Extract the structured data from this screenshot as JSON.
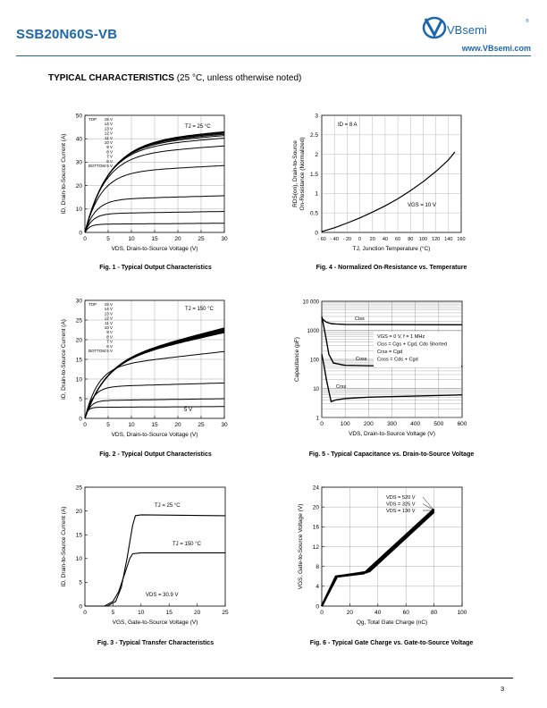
{
  "header": {
    "part_number": "SSB20N60S-VB",
    "brand": "VBsemi",
    "url": "www.VBsemi.com"
  },
  "section": {
    "title": "TYPICAL CHARACTERISTICS",
    "condition": "(25 °C, unless otherwise noted)"
  },
  "figures": [
    {
      "id": 1,
      "caption": "Fig. 1 - Typical Output Characteristics"
    },
    {
      "id": 2,
      "caption": "Fig. 2 - Typical Output Characteristics"
    },
    {
      "id": 3,
      "caption": "Fig. 3 - Typical Transfer Characteristics"
    },
    {
      "id": 4,
      "caption": "Fig. 4 - Normalized On-Resistance vs. Temperature"
    },
    {
      "id": 5,
      "caption": "Fig. 5 - Typical Capacitance vs. Drain-to-Source Voltage"
    },
    {
      "id": 6,
      "caption": "Fig. 6 - Typical Gate Charge vs. Gate-to-Source Voltage"
    }
  ],
  "page_number": "3",
  "chart_data": [
    {
      "id": "fig1",
      "type": "line",
      "xlabel": "VDS, Drain-to-Source Voltage (V)",
      "ylabel": "ID, Drain-to-Source Current (A)",
      "xlim": [
        0,
        30
      ],
      "ylim": [
        0,
        50
      ],
      "xticks": [
        0,
        5,
        10,
        15,
        20,
        25,
        30
      ],
      "yticks": [
        0,
        10,
        20,
        30,
        40,
        50
      ],
      "annotation": "TJ = 25 °C",
      "legend_top": "TOP",
      "legend_bottom": "BOTTOM",
      "legend_vgs": [
        "15 V",
        "14 V",
        "13 V",
        "12 V",
        "11 V",
        "10 V",
        "9 V",
        "8 V",
        "7 V",
        "6 V",
        "5 V"
      ],
      "series": [
        {
          "sat": 38.5,
          "knee": 5.2
        },
        {
          "sat": 38.2,
          "knee": 5.1
        },
        {
          "sat": 37.9,
          "knee": 5.0
        },
        {
          "sat": 37.5,
          "knee": 4.9
        },
        {
          "sat": 37.0,
          "knee": 4.8
        },
        {
          "sat": 36.0,
          "knee": 4.6
        },
        {
          "sat": 33.0,
          "knee": 4.2
        },
        {
          "sat": 25.5,
          "knee": 3.4
        },
        {
          "sat": 14.0,
          "knee": 2.3
        },
        {
          "sat": 8.0,
          "knee": 1.6
        },
        {
          "sat": 3.5,
          "knee": 1.0
        }
      ]
    },
    {
      "id": "fig2",
      "type": "line",
      "xlabel": "VDS, Drain-to-Source Voltage (V)",
      "ylabel": "ID, Drain-to-Source Current (A)",
      "xlim": [
        0,
        30
      ],
      "ylim": [
        0,
        30
      ],
      "xticks": [
        0,
        5,
        10,
        15,
        20,
        25,
        30
      ],
      "yticks": [
        0,
        5,
        10,
        15,
        20,
        25,
        30
      ],
      "annotation": "TJ = 150 °C",
      "label_5v": "5 V",
      "legend_top": "TOP",
      "legend_bottom": "BOTTOM",
      "legend_vgs": [
        "15 V",
        "14 V",
        "13 V",
        "12 V",
        "11 V",
        "10 V",
        "9 V",
        "8 V",
        "7 V",
        "6 V",
        "5 V"
      ],
      "series": [
        {
          "end": 23.0,
          "kneeV": 8,
          "kneeI": 14
        },
        {
          "end": 22.8,
          "kneeV": 8,
          "kneeI": 14
        },
        {
          "end": 22.6,
          "kneeV": 8,
          "kneeI": 14
        },
        {
          "end": 22.4,
          "kneeV": 8,
          "kneeI": 14
        },
        {
          "end": 22.2,
          "kneeV": 8,
          "kneeI": 14
        },
        {
          "end": 22.0,
          "kneeV": 8,
          "kneeI": 14
        },
        {
          "end": 21.8,
          "kneeV": 8,
          "kneeI": 14
        },
        {
          "end": 17.0,
          "kneeV": 5,
          "kneeI": 13
        },
        {
          "end": 9.0,
          "kneeV": 3,
          "kneeI": 8
        },
        {
          "end": 5.0,
          "kneeV": 2,
          "kneeI": 4.5
        },
        {
          "end": 3.0,
          "kneeV": 1,
          "kneeI": 2.8
        }
      ]
    },
    {
      "id": "fig3",
      "type": "line",
      "xlabel": "VGS, Gate-to-Source Voltage (V)",
      "ylabel": "ID, Drain-to-Source Current (A)",
      "xlim": [
        0,
        25
      ],
      "ylim": [
        0,
        25
      ],
      "xticks": [
        0,
        5,
        10,
        15,
        20,
        25
      ],
      "yticks": [
        0,
        5,
        10,
        15,
        20,
        25
      ],
      "annotations": [
        "TJ = 25 °C",
        "TJ = 150 °C",
        "VDS = 30.9 V"
      ],
      "series": [
        {
          "name": "TJ = 25 °C",
          "x": [
            0,
            4.0,
            5.5,
            6.5,
            7.5,
            8.5,
            9,
            10,
            25
          ],
          "y": [
            0,
            0,
            1,
            4,
            10,
            17,
            19,
            19.2,
            19
          ]
        },
        {
          "name": "TJ = 150 °C",
          "x": [
            0,
            3.5,
            5,
            6,
            7,
            8,
            8.5,
            10,
            25
          ],
          "y": [
            0,
            0,
            1,
            3,
            6.5,
            10,
            11,
            11.2,
            11.2
          ]
        }
      ]
    },
    {
      "id": "fig4",
      "type": "line",
      "xlabel": "TJ, Junction Temperature (°C)",
      "ylabel": "RDS(on), Drain-to-Source On-Resistance (Normalized)",
      "xlim": [
        -60,
        160
      ],
      "ylim": [
        0,
        3
      ],
      "xticks": [
        "- 60",
        "- 40",
        "- 20",
        "0",
        "20",
        "40",
        "60",
        "80",
        "100",
        "120",
        "140",
        "160"
      ],
      "yticks": [
        0,
        0.5,
        1,
        1.5,
        2,
        2.5,
        3
      ],
      "annotations": [
        "ID = 8 A",
        "VGS = 10 V"
      ],
      "x": [
        -60,
        -40,
        -20,
        0,
        20,
        40,
        60,
        80,
        100,
        120,
        140,
        150
      ],
      "y": [
        0.02,
        0.12,
        0.24,
        0.37,
        0.52,
        0.68,
        0.86,
        1.07,
        1.3,
        1.56,
        1.86,
        2.06
      ]
    },
    {
      "id": "fig5",
      "type": "line",
      "yscale": "log",
      "xlabel": "VDS, Drain-to-Source Voltage (V)",
      "ylabel": "Capacitance (pF)",
      "xlim": [
        0,
        600
      ],
      "ylim": [
        1,
        10000
      ],
      "xticks": [
        0,
        100,
        200,
        300,
        400,
        500,
        600
      ],
      "yticks": [
        "1",
        "10",
        "100",
        "1000",
        "10 000"
      ],
      "legend": [
        "VGS = 0 V, f = 1 MHz",
        "Ciss = Cgs + Cgd, Cds Shorted",
        "Crss = Cgd",
        "Coss = Cds + Cgd"
      ],
      "series": [
        {
          "name": "Ciss",
          "x": [
            0,
            10,
            20,
            40,
            60,
            100,
            600
          ],
          "y": [
            2600,
            2200,
            1900,
            1700,
            1650,
            1600,
            1550
          ]
        },
        {
          "name": "Coss",
          "x": [
            0,
            10,
            20,
            30,
            50,
            100,
            200,
            600
          ],
          "y": [
            3000,
            1200,
            450,
            150,
            75,
            62,
            60,
            58
          ]
        },
        {
          "name": "Crss",
          "x": [
            0,
            10,
            20,
            30,
            40,
            60,
            100,
            200,
            600
          ],
          "y": [
            150,
            60,
            20,
            8,
            3.5,
            4,
            4.5,
            5,
            6
          ]
        }
      ]
    },
    {
      "id": "fig6",
      "type": "line",
      "xlabel": "Qg, Total Gate Charge (nC)",
      "ylabel": "VGS, Gate-to-Source Voltage (V)",
      "xlim": [
        0,
        100
      ],
      "ylim": [
        0,
        24
      ],
      "xticks": [
        0,
        20,
        40,
        60,
        80,
        100
      ],
      "yticks": [
        0,
        4,
        8,
        12,
        16,
        20,
        24
      ],
      "legend": [
        "VDS = 520 V",
        "VDS = 325 V",
        "VDS = 130 V"
      ],
      "series": [
        {
          "name": "VDS = 520 V",
          "x": [
            0,
            11,
            34,
            80
          ],
          "y": [
            0,
            6.0,
            7.0,
            19.0
          ]
        },
        {
          "name": "VDS = 325 V",
          "x": [
            0,
            10,
            32,
            80
          ],
          "y": [
            0,
            6.0,
            6.8,
            19.3
          ]
        },
        {
          "name": "VDS = 130 V",
          "x": [
            0,
            10,
            30,
            80
          ],
          "y": [
            0,
            5.9,
            6.6,
            19.6
          ]
        }
      ]
    }
  ]
}
